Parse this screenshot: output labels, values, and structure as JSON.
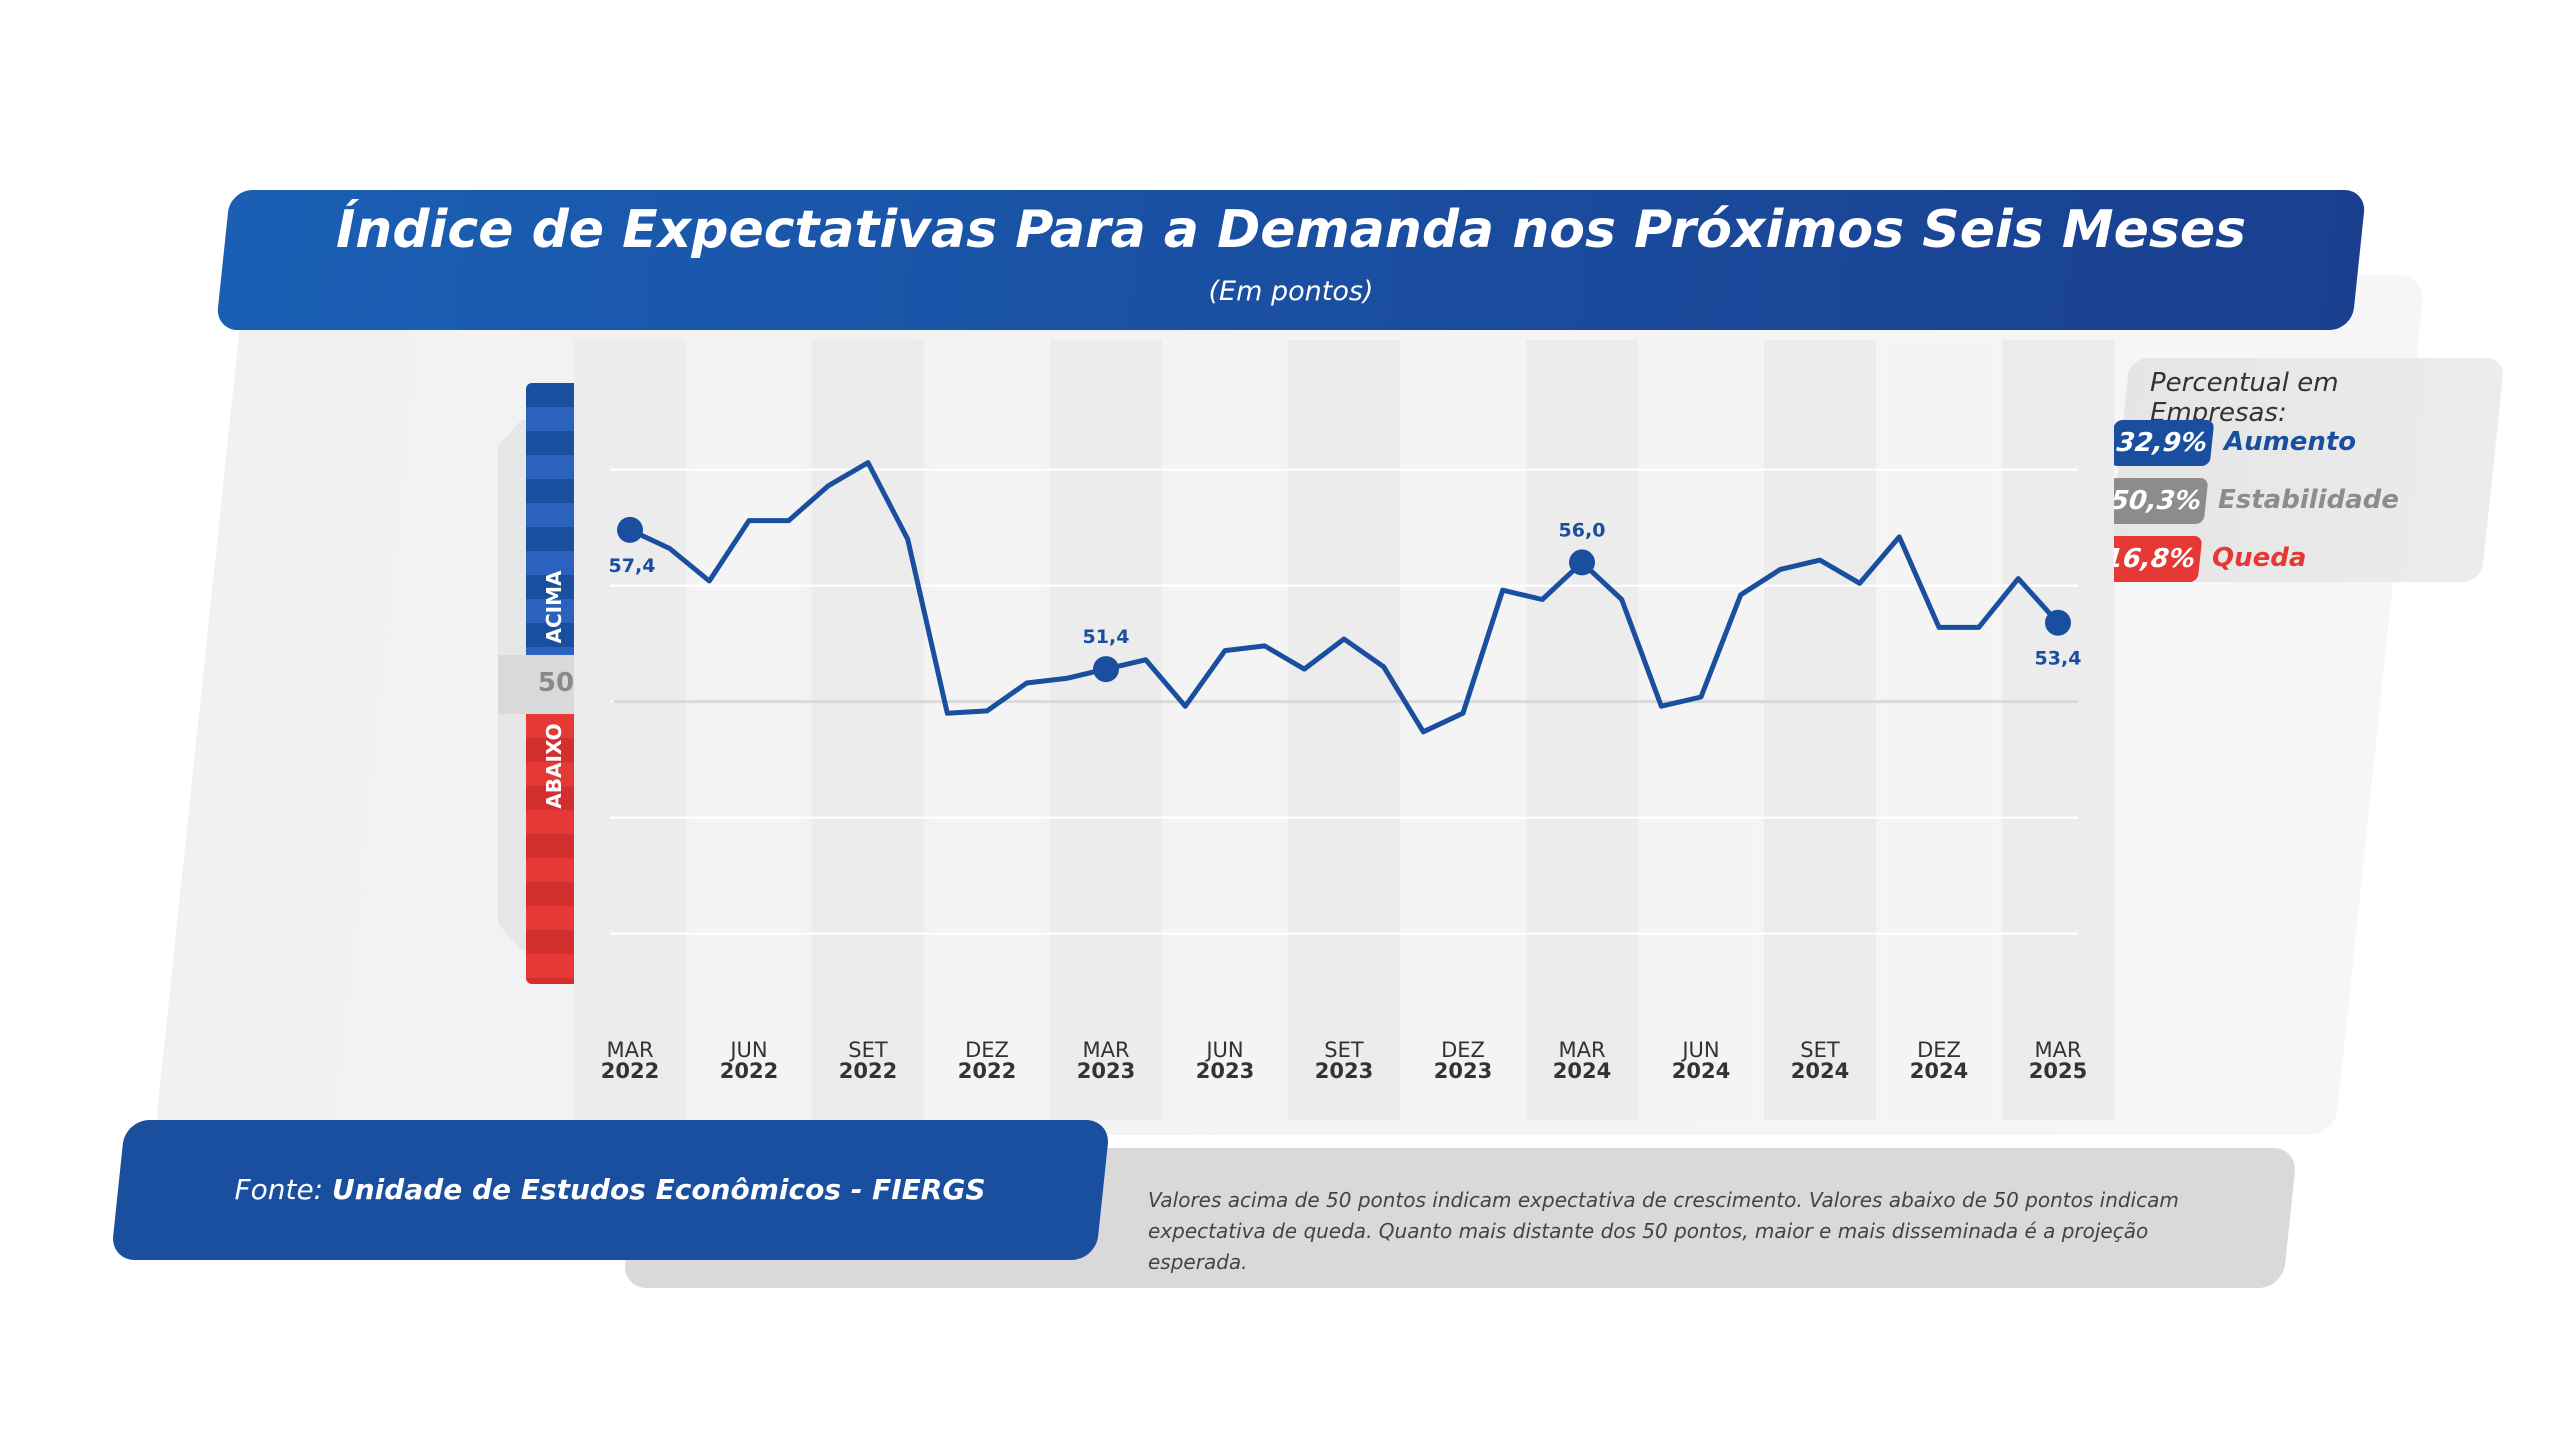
{
  "header": {
    "title": "Índice de Expectativas Para a Demanda nos Próximos Seis Meses",
    "subtitle": "(Em pontos)"
  },
  "legend": {
    "title": "Percentual em Empresas:",
    "items": [
      {
        "value": "32,9%",
        "label": "Aumento",
        "color": "#1a4fa0"
      },
      {
        "value": "50,3%",
        "label": "Estabilidade",
        "color": "#8c8c8c"
      },
      {
        "value": "16,8%",
        "label": "Queda",
        "color": "#e53935"
      }
    ]
  },
  "scale_bar": {
    "above_label": "ACIMA",
    "mid_label": "50",
    "below_label": "ABAIXO"
  },
  "footer": {
    "source_prefix": "Fonte: ",
    "source_name": "Unidade de Estudos Econômicos - FIERGS",
    "note": "Valores acima de 50 pontos indicam expectativa de crescimento. Valores abaixo de 50 pontos indicam expectativa de queda. Quanto mais distante dos 50 pontos, maior e mais disseminada é a projeção esperada."
  },
  "chart_data": {
    "type": "line",
    "title": "Índice de Expectativas Para a Demanda nos Próximos Seis Meses",
    "subtitle": "(Em pontos)",
    "reference_line": 50,
    "tick_labels": [
      {
        "month": "MAR",
        "year": "2022"
      },
      {
        "month": "JUN",
        "year": "2022"
      },
      {
        "month": "SET",
        "year": "2022"
      },
      {
        "month": "DEZ",
        "year": "2022"
      },
      {
        "month": "MAR",
        "year": "2023"
      },
      {
        "month": "JUN",
        "year": "2023"
      },
      {
        "month": "SET",
        "year": "2023"
      },
      {
        "month": "DEZ",
        "year": "2023"
      },
      {
        "month": "MAR",
        "year": "2024"
      },
      {
        "month": "JUN",
        "year": "2024"
      },
      {
        "month": "SET",
        "year": "2024"
      },
      {
        "month": "DEZ",
        "year": "2024"
      },
      {
        "month": "MAR",
        "year": "2025"
      }
    ],
    "x": [
      "mar/2022",
      "abr/2022",
      "mai/2022",
      "jun/2022",
      "jul/2022",
      "ago/2022",
      "set/2022",
      "out/2022",
      "nov/2022",
      "dez/2022",
      "jan/2023",
      "fev/2023",
      "mar/2023",
      "abr/2023",
      "mai/2023",
      "jun/2023",
      "jul/2023",
      "ago/2023",
      "set/2023",
      "out/2023",
      "nov/2023",
      "dez/2023",
      "jan/2024",
      "fev/2024",
      "mar/2024",
      "abr/2024",
      "mai/2024",
      "jun/2024",
      "jul/2024",
      "ago/2024",
      "set/2024",
      "out/2024",
      "nov/2024",
      "dez/2024",
      "jan/2025",
      "fev/2025",
      "mar/2025"
    ],
    "series": [
      {
        "color": "#1a4fa0",
        "values": [
          57.4,
          56.6,
          55.2,
          57.8,
          57.8,
          59.3,
          60.3,
          57.0,
          49.5,
          49.6,
          50.8,
          51.0,
          51.4,
          51.8,
          49.8,
          52.2,
          52.4,
          51.4,
          52.7,
          51.5,
          48.7,
          49.5,
          54.8,
          54.4,
          56.0,
          54.4,
          49.8,
          50.2,
          54.6,
          55.7,
          56.1,
          55.1,
          57.1,
          53.2,
          53.2,
          55.3,
          53.4
        ]
      }
    ],
    "annotations": [
      {
        "index": 0,
        "label": "57,4"
      },
      {
        "index": 12,
        "label": "51,4"
      },
      {
        "index": 24,
        "label": "56,0"
      },
      {
        "index": 36,
        "label": "53,4"
      }
    ],
    "ylim": [
      38,
      63
    ],
    "grid": true
  }
}
